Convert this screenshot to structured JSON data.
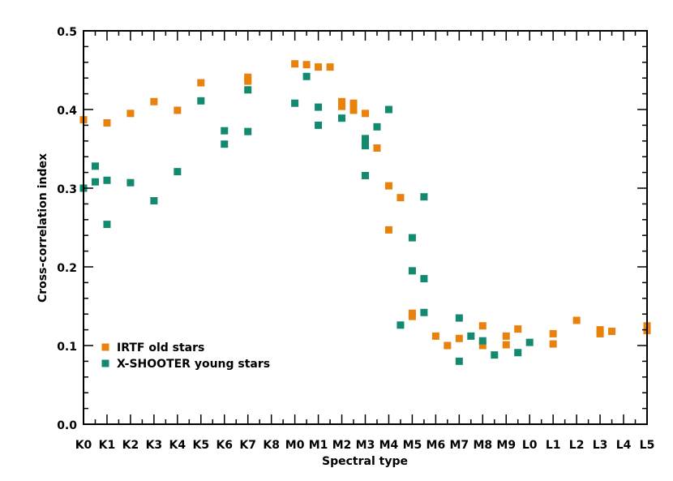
{
  "chart_data": {
    "type": "scatter",
    "title": "",
    "xlabel": "Spectral type",
    "ylabel": "Cross-correlation index",
    "categories": [
      "K0",
      "K1",
      "K2",
      "K3",
      "K4",
      "K5",
      "K6",
      "K7",
      "K8",
      "M0",
      "M1",
      "M2",
      "M3",
      "M4",
      "M5",
      "M6",
      "M7",
      "M8",
      "M9",
      "L0",
      "L1",
      "L2",
      "L3",
      "L4",
      "L5"
    ],
    "xlim": [
      0,
      24
    ],
    "ylim": [
      0.0,
      0.5
    ],
    "yticks": [
      "0.0",
      "0.1",
      "0.2",
      "0.3",
      "0.4",
      "0.5"
    ],
    "legend_position": "lower-left",
    "series": [
      {
        "name": "IRTF old stars",
        "color": "#E8820C",
        "points": [
          [
            0,
            0.387
          ],
          [
            1,
            0.383
          ],
          [
            2,
            0.395
          ],
          [
            3,
            0.41
          ],
          [
            4,
            0.399
          ],
          [
            5,
            0.434
          ],
          [
            7,
            0.441
          ],
          [
            7,
            0.436
          ],
          [
            9,
            0.458
          ],
          [
            9.5,
            0.457
          ],
          [
            10,
            0.454
          ],
          [
            10.5,
            0.454
          ],
          [
            11,
            0.41
          ],
          [
            11,
            0.404
          ],
          [
            11.5,
            0.408
          ],
          [
            11.5,
            0.399
          ],
          [
            12,
            0.395
          ],
          [
            12.5,
            0.351
          ],
          [
            13,
            0.303
          ],
          [
            13,
            0.247
          ],
          [
            13.5,
            0.288
          ],
          [
            14,
            0.141
          ],
          [
            14,
            0.137
          ],
          [
            15,
            0.112
          ],
          [
            15.5,
            0.1
          ],
          [
            16,
            0.109
          ],
          [
            17,
            0.125
          ],
          [
            17,
            0.1
          ],
          [
            18,
            0.112
          ],
          [
            18,
            0.101
          ],
          [
            18.5,
            0.121
          ],
          [
            20,
            0.115
          ],
          [
            20,
            0.102
          ],
          [
            21,
            0.132
          ],
          [
            22,
            0.12
          ],
          [
            22,
            0.115
          ],
          [
            22.5,
            0.118
          ],
          [
            24,
            0.125
          ],
          [
            24,
            0.119
          ]
        ]
      },
      {
        "name": "X-SHOOTER young stars",
        "color": "#138A70",
        "points": [
          [
            0,
            0.3
          ],
          [
            0.5,
            0.328
          ],
          [
            0.5,
            0.308
          ],
          [
            1,
            0.31
          ],
          [
            1,
            0.254
          ],
          [
            2,
            0.307
          ],
          [
            3,
            0.284
          ],
          [
            4,
            0.321
          ],
          [
            5,
            0.411
          ],
          [
            6,
            0.373
          ],
          [
            6,
            0.356
          ],
          [
            7,
            0.425
          ],
          [
            7,
            0.372
          ],
          [
            9,
            0.408
          ],
          [
            9.5,
            0.442
          ],
          [
            10,
            0.403
          ],
          [
            10,
            0.38
          ],
          [
            11,
            0.389
          ],
          [
            12,
            0.363
          ],
          [
            12,
            0.354
          ],
          [
            12,
            0.316
          ],
          [
            12.5,
            0.378
          ],
          [
            13,
            0.4
          ],
          [
            13.5,
            0.126
          ],
          [
            14,
            0.237
          ],
          [
            14,
            0.195
          ],
          [
            14.5,
            0.289
          ],
          [
            14.5,
            0.185
          ],
          [
            14.5,
            0.142
          ],
          [
            16,
            0.135
          ],
          [
            16,
            0.08
          ],
          [
            16.5,
            0.112
          ],
          [
            17,
            0.106
          ],
          [
            17.5,
            0.088
          ],
          [
            18.5,
            0.091
          ],
          [
            19,
            0.104
          ]
        ]
      }
    ]
  }
}
